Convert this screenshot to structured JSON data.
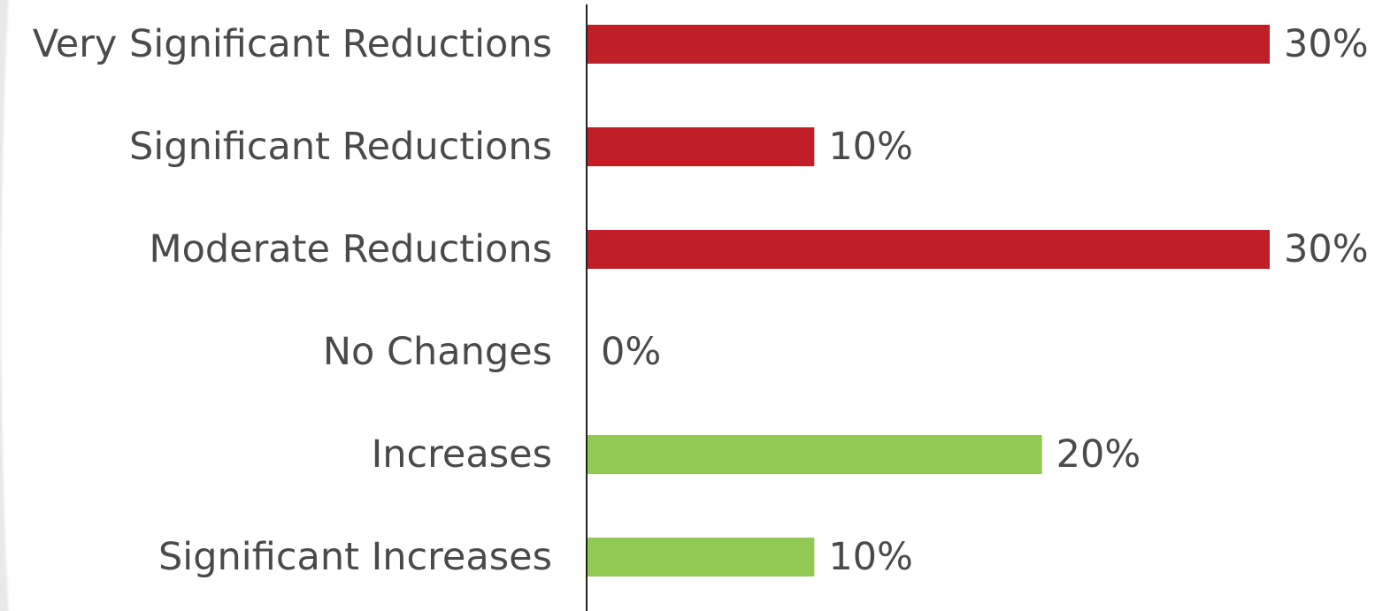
{
  "chart_data": {
    "type": "bar",
    "orientation": "horizontal",
    "categories": [
      "Very Significant Reductions",
      "Significant Reductions",
      "Moderate Reductions",
      "No Changes",
      "Increases",
      "Significant Increases"
    ],
    "values": [
      30,
      10,
      30,
      0,
      20,
      10
    ],
    "value_labels": [
      "30%",
      "10%",
      "30%",
      "0%",
      "20%",
      "10%"
    ],
    "xlim": [
      0,
      30
    ],
    "grid": false,
    "colors": {
      "reduction": "#c11f27",
      "increase": "#92c952",
      "axis": "#222222",
      "text": "#4a4a4a"
    },
    "bar_colors": [
      "reduction",
      "reduction",
      "reduction",
      "reduction",
      "increase",
      "increase"
    ]
  }
}
